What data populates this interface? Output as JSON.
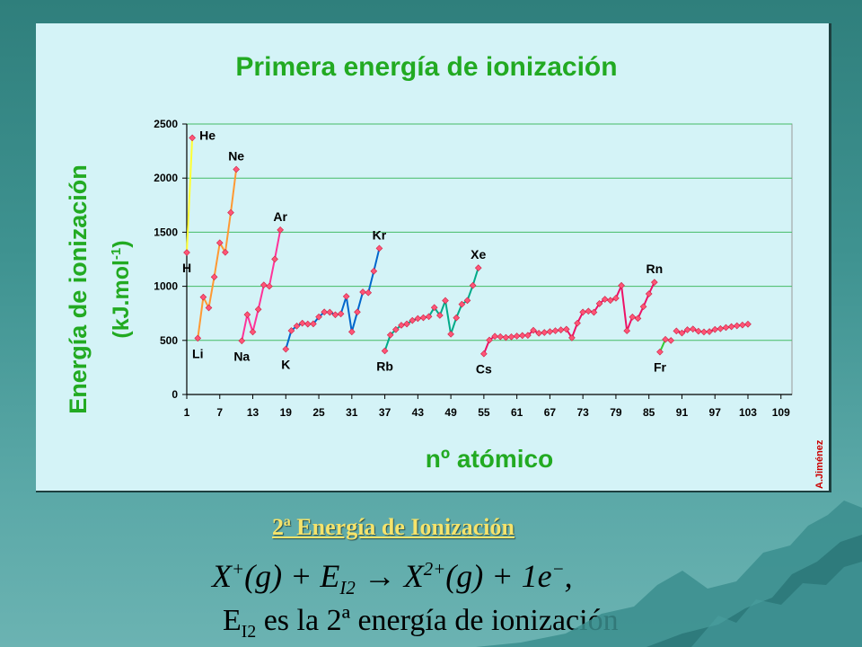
{
  "chart_data": {
    "type": "line",
    "title": "Primera energía de ionización",
    "xlabel": "nº atómico",
    "ylabel": "Energía de ionización",
    "ylabel_unit_main": "(kJ.mol",
    "ylabel_unit_sup": "-1",
    "ylabel_unit_end": ")",
    "author": "A.Jiménez",
    "xlim": [
      1,
      111
    ],
    "ylim": [
      0,
      2500
    ],
    "x_ticks": [
      "1",
      "7",
      "13",
      "19",
      "25",
      "31",
      "37",
      "43",
      "49",
      "55",
      "61",
      "67",
      "73",
      "79",
      "85",
      "91",
      "97",
      "103",
      "109"
    ],
    "y_ticks": [
      "0",
      "500",
      "1000",
      "1500",
      "2000",
      "2500"
    ],
    "grid": true,
    "series": [
      {
        "color": "#ffff33",
        "x": [
          1,
          2
        ],
        "y": [
          1312,
          2372
        ]
      },
      {
        "color": "#ff9933",
        "x": [
          3,
          4,
          5,
          6,
          7,
          8,
          9,
          10
        ],
        "y": [
          520,
          900,
          801,
          1086,
          1402,
          1314,
          1681,
          2081
        ]
      },
      {
        "color": "#ff3399",
        "x": [
          11,
          12,
          13,
          14,
          15,
          16,
          17,
          18
        ],
        "y": [
          496,
          738,
          578,
          787,
          1012,
          1000,
          1251,
          1521
        ]
      },
      {
        "color": "#0066cc",
        "x": [
          19,
          20,
          21,
          22,
          23,
          24,
          25,
          26,
          27,
          28,
          29,
          30,
          31,
          32,
          33,
          34,
          35,
          36
        ],
        "y": [
          419,
          590,
          633,
          659,
          651,
          653,
          717,
          762,
          760,
          737,
          745,
          906,
          579,
          762,
          947,
          941,
          1140,
          1351
        ]
      },
      {
        "color": "#00aa88",
        "x": [
          37,
          38,
          39,
          40,
          41,
          42,
          43,
          44,
          45,
          46,
          47,
          48,
          49,
          50,
          51,
          52,
          53,
          54
        ],
        "y": [
          403,
          550,
          600,
          640,
          652,
          684,
          702,
          710,
          720,
          804,
          731,
          868,
          558,
          709,
          834,
          869,
          1008,
          1170
        ]
      },
      {
        "color": "#ee1166",
        "x": [
          55,
          56,
          57,
          58,
          59,
          60,
          61,
          62,
          63,
          64,
          65,
          66,
          67,
          68,
          69,
          70,
          71,
          72,
          73,
          74,
          75,
          76,
          77,
          78,
          79,
          80,
          81,
          82,
          83,
          84,
          85,
          86
        ],
        "y": [
          376,
          503,
          538,
          534,
          527,
          533,
          540,
          545,
          547,
          593,
          566,
          573,
          581,
          589,
          597,
          603,
          524,
          659,
          761,
          770,
          760,
          840,
          880,
          870,
          890,
          1007,
          589,
          716,
          703,
          812,
          930,
          1037
        ]
      },
      {
        "color": "#33cc33",
        "x": [
          87,
          88,
          89
        ],
        "y": [
          393,
          509,
          499
        ]
      },
      {
        "color": "#ee1166",
        "x": [
          90,
          91,
          92,
          93,
          94,
          95,
          96,
          97,
          98,
          99,
          100,
          101,
          102,
          103
        ],
        "y": [
          587,
          568,
          598,
          605,
          585,
          578,
          581,
          601,
          608,
          619,
          627,
          635,
          642,
          650
        ]
      }
    ],
    "annotations": [
      {
        "label": "He",
        "x": 2,
        "y": 2372,
        "pos": "right"
      },
      {
        "label": "H",
        "x": 1,
        "y": 1312,
        "pos": "below"
      },
      {
        "label": "Ne",
        "x": 10,
        "y": 2081,
        "pos": "above"
      },
      {
        "label": "Li",
        "x": 3,
        "y": 520,
        "pos": "below"
      },
      {
        "label": "Ar",
        "x": 18,
        "y": 1521,
        "pos": "above"
      },
      {
        "label": "Na",
        "x": 11,
        "y": 496,
        "pos": "below"
      },
      {
        "label": "Kr",
        "x": 36,
        "y": 1351,
        "pos": "above"
      },
      {
        "label": "K",
        "x": 19,
        "y": 419,
        "pos": "below"
      },
      {
        "label": "Xe",
        "x": 54,
        "y": 1170,
        "pos": "above"
      },
      {
        "label": "Rb",
        "x": 37,
        "y": 403,
        "pos": "below"
      },
      {
        "label": "Rn",
        "x": 86,
        "y": 1037,
        "pos": "above"
      },
      {
        "label": "Cs",
        "x": 55,
        "y": 376,
        "pos": "below"
      },
      {
        "label": "Fr",
        "x": 87,
        "y": 393,
        "pos": "below"
      }
    ]
  },
  "caption": "2ª Energía de Ionización",
  "equation1": {
    "X": "X",
    "sup1": "+",
    "g1": "(g)",
    "plus1": " + ",
    "E": "E",
    "E_sub": "I2",
    "arrow": " → ",
    "X2": "X",
    "sup2": "2+",
    "g2": "(g)",
    "plus2": " + ",
    "one_e": "1e",
    "sup3": "−",
    "end": ","
  },
  "equation2": {
    "E": "E",
    "E_sub": "I2",
    "text": " es la 2ª energía de ionización"
  },
  "colors": {
    "title": "#22aa22",
    "marker": "#ff5577",
    "panel": "#d4f3f7",
    "caption": "#f5e36b"
  }
}
